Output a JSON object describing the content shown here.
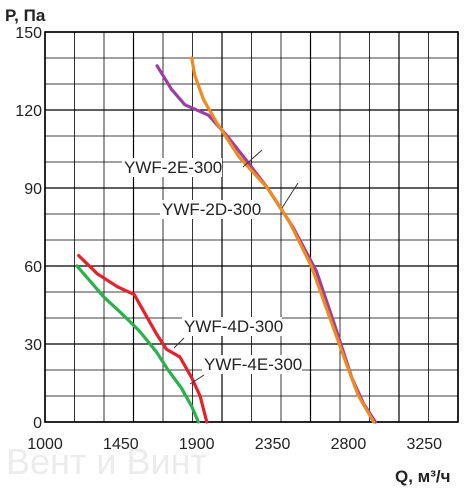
{
  "chart_data": {
    "type": "line",
    "ylabel": "P, Па",
    "xlabel": "Q, м³/ч",
    "xlim": [
      1000,
      3450
    ],
    "ylim": [
      0,
      150
    ],
    "x_ticks": [
      1000,
      1450,
      1900,
      2350,
      2800,
      3250
    ],
    "y_ticks": [
      0,
      30,
      60,
      90,
      120,
      150
    ],
    "grid": true,
    "watermark": "Вент и Винт",
    "series": [
      {
        "name": "YWF-2E-300",
        "color": "#9b3fa6",
        "points": [
          [
            1665,
            137
          ],
          [
            1750,
            128
          ],
          [
            1830,
            122
          ],
          [
            1970,
            118
          ],
          [
            2080,
            110
          ],
          [
            2190,
            101
          ],
          [
            2320,
            90
          ],
          [
            2470,
            75
          ],
          [
            2610,
            58
          ],
          [
            2720,
            37
          ],
          [
            2820,
            17
          ],
          [
            2890,
            7
          ],
          [
            2960,
            0
          ]
        ]
      },
      {
        "name": "YWF-2D-300",
        "color": "#f28a1e",
        "points": [
          [
            1870,
            140
          ],
          [
            1890,
            133
          ],
          [
            1940,
            124
          ],
          [
            2020,
            115
          ],
          [
            2150,
            102
          ],
          [
            2320,
            90
          ],
          [
            2450,
            77
          ],
          [
            2580,
            60
          ],
          [
            2690,
            40
          ],
          [
            2790,
            22
          ],
          [
            2860,
            10
          ],
          [
            2950,
            0
          ]
        ]
      },
      {
        "name": "YWF-4D-300",
        "color": "#e8202a",
        "points": [
          [
            1200,
            64
          ],
          [
            1310,
            57
          ],
          [
            1430,
            52
          ],
          [
            1530,
            49
          ],
          [
            1590,
            42
          ],
          [
            1660,
            34
          ],
          [
            1720,
            28
          ],
          [
            1800,
            25
          ],
          [
            1870,
            17
          ],
          [
            1920,
            10
          ],
          [
            1960,
            0
          ]
        ]
      },
      {
        "name": "YWF-4E-300",
        "color": "#27b24a",
        "points": [
          [
            1190,
            60
          ],
          [
            1270,
            54
          ],
          [
            1350,
            48
          ],
          [
            1450,
            42
          ],
          [
            1560,
            35
          ],
          [
            1660,
            27
          ],
          [
            1730,
            20
          ],
          [
            1810,
            13
          ],
          [
            1870,
            6
          ],
          [
            1910,
            0
          ]
        ]
      }
    ]
  }
}
